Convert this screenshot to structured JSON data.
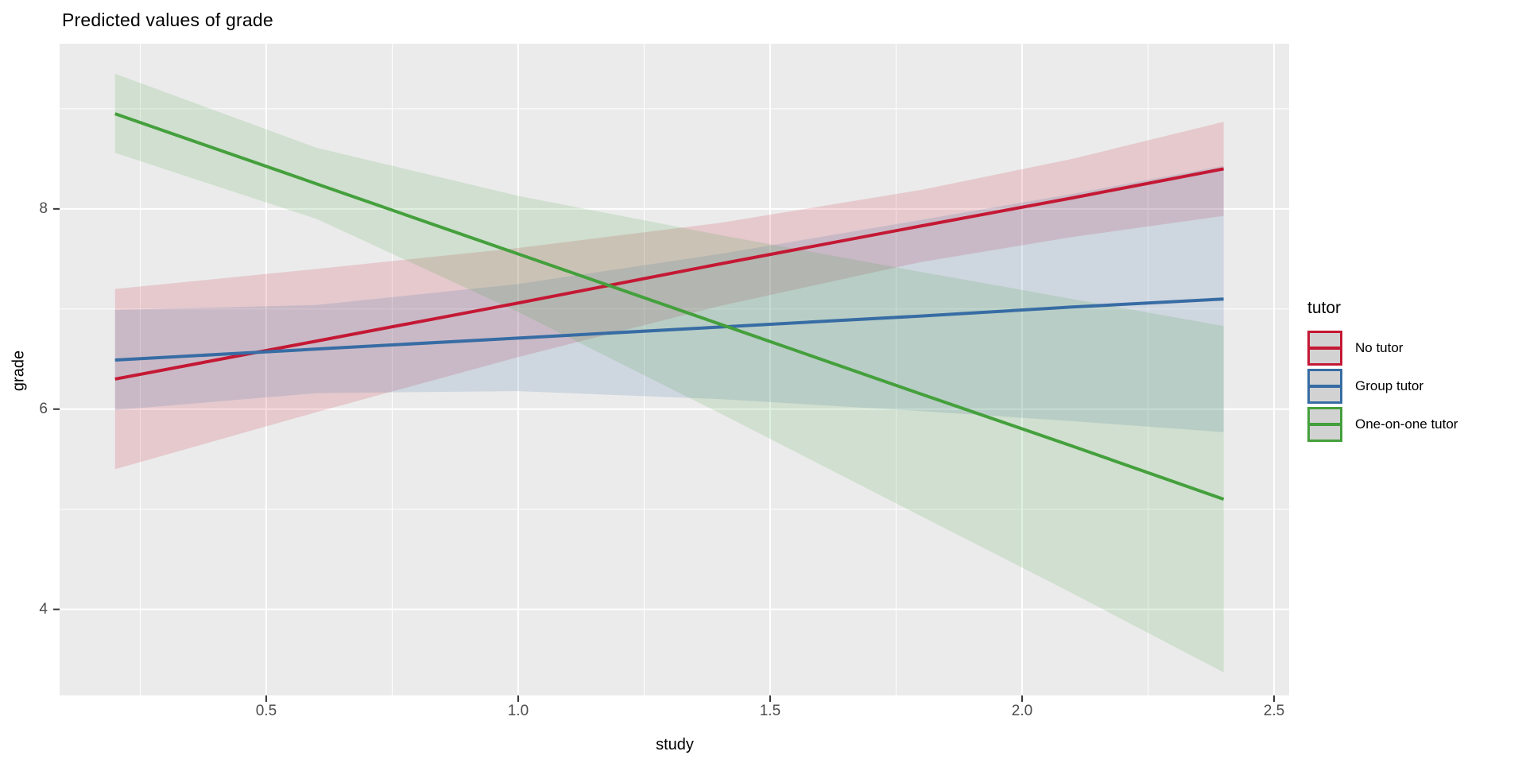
{
  "chart_data": {
    "type": "line",
    "title": "Predicted values of grade",
    "xlabel": "study",
    "ylabel": "grade",
    "legend_title": "tutor",
    "legend_position": "right",
    "grid": true,
    "panel_background": "#EBEBEB",
    "gridline_color": "#FFFFFF",
    "tick_label_color": "#4d4d4d",
    "xlim": [
      0.09,
      2.53
    ],
    "ylim": [
      3.14,
      9.65
    ],
    "x_ticks": [
      0.5,
      1.0,
      1.5,
      2.0,
      2.5
    ],
    "x_tick_labels": [
      "0.5",
      "1.0",
      "1.5",
      "2.0",
      "2.5"
    ],
    "x_minor_ticks": [
      0.25,
      0.75,
      1.25,
      1.75,
      2.25
    ],
    "y_ticks": [
      4,
      6,
      8
    ],
    "y_tick_labels": [
      "4",
      "6",
      "8"
    ],
    "y_minor_ticks": [
      5,
      7,
      9
    ],
    "x": [
      0.2,
      0.6,
      1.0,
      1.4,
      1.8,
      2.1,
      2.4
    ],
    "series": [
      {
        "name": "No tutor",
        "color": "#C41834",
        "values": [
          6.3,
          6.68,
          7.06,
          7.45,
          7.83,
          8.11,
          8.4
        ],
        "ci_lower": [
          5.4,
          5.97,
          6.52,
          7.03,
          7.47,
          7.72,
          7.93
        ],
        "ci_upper": [
          7.2,
          7.4,
          7.61,
          7.86,
          8.19,
          8.5,
          8.87
        ]
      },
      {
        "name": "Group tutor",
        "color": "#376CA4",
        "values": [
          6.49,
          6.6,
          6.71,
          6.82,
          6.93,
          7.02,
          7.1
        ],
        "ci_lower": [
          5.99,
          6.16,
          6.18,
          6.1,
          5.98,
          5.88,
          5.77
        ],
        "ci_upper": [
          6.99,
          7.04,
          7.25,
          7.55,
          7.89,
          8.15,
          8.43
        ]
      },
      {
        "name": "One-on-one tutor",
        "color": "#44A03C",
        "values": [
          8.95,
          8.25,
          7.55,
          6.85,
          6.15,
          5.63,
          5.1
        ],
        "ci_lower": [
          8.56,
          7.9,
          6.97,
          5.96,
          4.93,
          4.16,
          3.37
        ],
        "ci_upper": [
          9.35,
          8.61,
          8.13,
          7.74,
          7.37,
          7.1,
          6.83
        ]
      }
    ],
    "ribbon_opacity": 0.16
  }
}
